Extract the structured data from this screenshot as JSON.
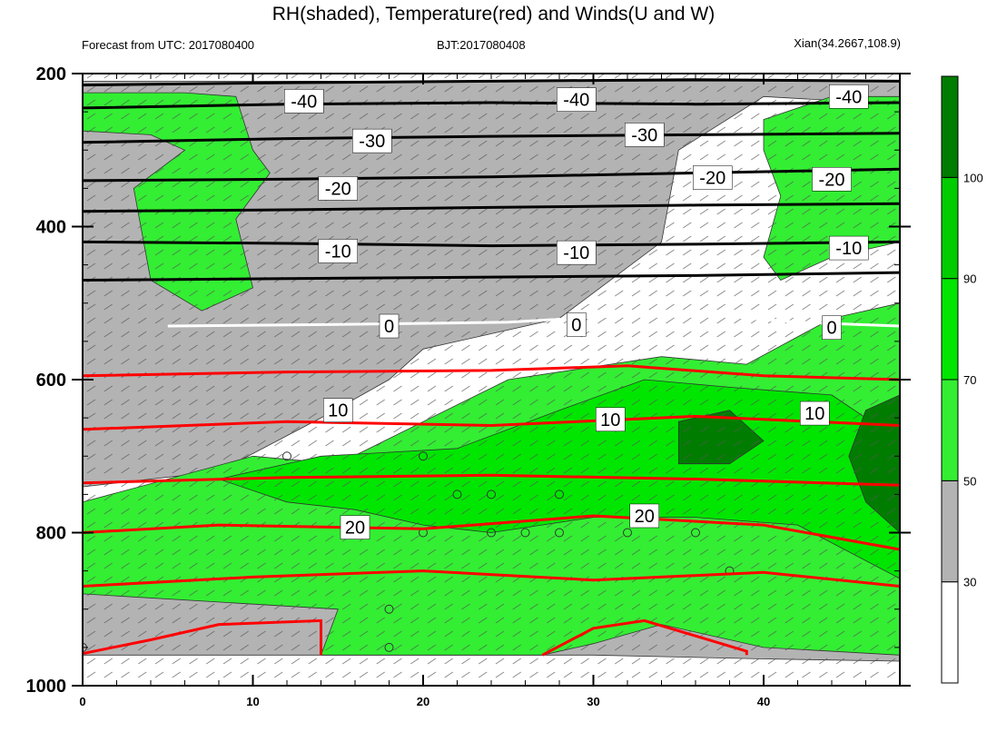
{
  "header": {
    "title": "RH(shaded), Temperature(red) and Winds(U and W)",
    "forecast": "Forecast from UTC: 2017080400",
    "bjt": "BJT:2017080408",
    "location": "Xian(34.2667,108.9)"
  },
  "colors": {
    "rh_30_50": "#b3b3b3",
    "rh_50_70": "#33ee33",
    "rh_70_90": "#00e600",
    "rh_90_100": "#00cc00",
    "rh_100": "#007d00",
    "temp_warm": "#ff0000",
    "temp_cold": "#000000",
    "temp_zero": "#ffffff"
  },
  "chart_data": {
    "type": "heatmap",
    "title": "RH(shaded), Temperature(red) and Winds(U and W)",
    "xlabel": "",
    "ylabel": "",
    "xlim": [
      0,
      48
    ],
    "ylim": [
      1000,
      200
    ],
    "x_ticks": [
      "0",
      "10",
      "20",
      "30",
      "40"
    ],
    "y_ticks": [
      "200",
      "400",
      "600",
      "800",
      "1000"
    ],
    "colorbar": {
      "labels": [
        "30",
        "50",
        "70",
        "90",
        "100"
      ],
      "colors": [
        "#ffffff",
        "#b3b3b3",
        "#33ee33",
        "#00e600",
        "#00cc00",
        "#007d00"
      ]
    },
    "rh_regions": [
      {
        "level": "30-50",
        "points": [
          [
            0,
            210
          ],
          [
            48,
            210
          ],
          [
            48,
            240
          ],
          [
            40,
            230
          ],
          [
            35,
            300
          ],
          [
            34,
            420
          ],
          [
            28,
            520
          ],
          [
            20,
            560
          ],
          [
            18,
            600
          ],
          [
            14,
            650
          ],
          [
            8,
            720
          ],
          [
            0,
            740
          ]
        ]
      },
      {
        "level": "30-50",
        "points": [
          [
            0,
            840
          ],
          [
            4,
            860
          ],
          [
            8,
            870
          ],
          [
            12,
            880
          ],
          [
            16,
            870
          ],
          [
            20,
            860
          ],
          [
            30,
            870
          ],
          [
            40,
            890
          ],
          [
            48,
            900
          ],
          [
            48,
            968
          ],
          [
            40,
            965
          ],
          [
            30,
            960
          ],
          [
            20,
            960
          ],
          [
            10,
            960
          ],
          [
            0,
            960
          ]
        ]
      },
      {
        "level": "50-70",
        "points": [
          [
            0,
            225
          ],
          [
            6,
            225
          ],
          [
            9,
            230
          ],
          [
            10,
            300
          ],
          [
            11,
            330
          ],
          [
            9,
            390
          ],
          [
            10,
            480
          ],
          [
            7,
            510
          ],
          [
            4,
            470
          ],
          [
            3,
            350
          ],
          [
            6,
            300
          ],
          [
            4,
            280
          ],
          [
            0,
            275
          ]
        ]
      },
      {
        "level": "50-70",
        "points": [
          [
            15,
            710
          ],
          [
            25,
            600
          ],
          [
            34,
            570
          ],
          [
            39,
            580
          ],
          [
            44,
            520
          ],
          [
            48,
            500
          ],
          [
            48,
            960
          ],
          [
            40,
            950
          ],
          [
            34,
            920
          ],
          [
            30,
            945
          ],
          [
            27,
            960
          ],
          [
            18,
            960
          ],
          [
            14,
            960
          ],
          [
            15,
            900
          ],
          [
            0,
            880
          ],
          [
            0,
            760
          ],
          [
            10,
            700
          ]
        ]
      },
      {
        "level": "50-70",
        "points": [
          [
            40,
            260
          ],
          [
            44,
            230
          ],
          [
            48,
            230
          ],
          [
            48,
            420
          ],
          [
            44,
            440
          ],
          [
            41,
            470
          ],
          [
            40,
            440
          ],
          [
            41,
            360
          ],
          [
            40,
            300
          ]
        ]
      },
      {
        "level": "70-90",
        "points": [
          [
            8,
            730
          ],
          [
            14,
            700
          ],
          [
            22,
            690
          ],
          [
            28,
            640
          ],
          [
            33,
            600
          ],
          [
            38,
            610
          ],
          [
            44,
            620
          ],
          [
            48,
            680
          ],
          [
            48,
            860
          ],
          [
            42,
            790
          ],
          [
            36,
            780
          ],
          [
            30,
            780
          ],
          [
            24,
            800
          ],
          [
            20,
            790
          ],
          [
            16,
            770
          ],
          [
            12,
            760
          ]
        ]
      },
      {
        "level": "100",
        "points": [
          [
            35,
            655
          ],
          [
            38,
            640
          ],
          [
            40,
            680
          ],
          [
            38,
            710
          ],
          [
            35,
            710
          ]
        ]
      },
      {
        "level": "100",
        "points": [
          [
            46,
            640
          ],
          [
            48,
            620
          ],
          [
            48,
            800
          ],
          [
            46,
            760
          ],
          [
            45,
            700
          ]
        ]
      }
    ],
    "temperature_lines": [
      {
        "label": "-40",
        "color": "#000000",
        "points": [
          [
            0,
            215
          ],
          [
            12,
            212
          ],
          [
            24,
            210
          ],
          [
            36,
            208
          ],
          [
            48,
            210
          ]
        ]
      },
      {
        "label": "-40",
        "color": "#000000",
        "points": [
          [
            0,
            245
          ],
          [
            12,
            240
          ],
          [
            24,
            238
          ],
          [
            36,
            240
          ],
          [
            48,
            238
          ]
        ]
      },
      {
        "label": "-30",
        "color": "#000000",
        "points": [
          [
            0,
            290
          ],
          [
            12,
            285
          ],
          [
            24,
            282
          ],
          [
            36,
            280
          ],
          [
            48,
            278
          ]
        ]
      },
      {
        "label": "-20",
        "color": "#000000",
        "points": [
          [
            0,
            340
          ],
          [
            12,
            338
          ],
          [
            24,
            335
          ],
          [
            36,
            330
          ],
          [
            48,
            325
          ]
        ]
      },
      {
        "label": "-20",
        "color": "#000000",
        "points": [
          [
            0,
            380
          ],
          [
            12,
            378
          ],
          [
            24,
            375
          ],
          [
            36,
            372
          ],
          [
            48,
            370
          ]
        ]
      },
      {
        "label": "-10",
        "color": "#000000",
        "points": [
          [
            0,
            420
          ],
          [
            12,
            422
          ],
          [
            24,
            425
          ],
          [
            36,
            423
          ],
          [
            48,
            420
          ]
        ]
      },
      {
        "label": "-10",
        "color": "#000000",
        "points": [
          [
            0,
            470
          ],
          [
            12,
            468
          ],
          [
            24,
            466
          ],
          [
            36,
            464
          ],
          [
            48,
            460
          ]
        ]
      },
      {
        "label": "0",
        "color": "#ffffff",
        "points": [
          [
            5,
            530
          ],
          [
            15,
            528
          ],
          [
            25,
            525
          ],
          [
            35,
            512
          ],
          [
            42,
            525
          ],
          [
            48,
            530
          ]
        ]
      },
      {
        "label": "10",
        "color": "#ff0000",
        "points": [
          [
            0,
            595
          ],
          [
            12,
            590
          ],
          [
            24,
            588
          ],
          [
            32,
            582
          ],
          [
            40,
            595
          ],
          [
            48,
            600
          ]
        ]
      },
      {
        "label": "10",
        "color": "#ff0000",
        "points": [
          [
            0,
            665
          ],
          [
            12,
            655
          ],
          [
            24,
            660
          ],
          [
            36,
            648
          ],
          [
            48,
            660
          ]
        ]
      },
      {
        "label": "20",
        "color": "#ff0000",
        "points": [
          [
            0,
            735
          ],
          [
            12,
            728
          ],
          [
            24,
            725
          ],
          [
            36,
            730
          ],
          [
            48,
            738
          ]
        ]
      },
      {
        "label": "20",
        "color": "#ff0000",
        "points": [
          [
            0,
            800
          ],
          [
            8,
            790
          ],
          [
            20,
            795
          ],
          [
            30,
            778
          ],
          [
            40,
            790
          ],
          [
            48,
            822
          ]
        ]
      },
      {
        "label": "",
        "color": "#ff0000",
        "points": [
          [
            0,
            870
          ],
          [
            10,
            858
          ],
          [
            20,
            850
          ],
          [
            30,
            862
          ],
          [
            40,
            852
          ],
          [
            48,
            870
          ]
        ]
      },
      {
        "label": "",
        "color": "#ff0000",
        "points": [
          [
            0,
            958
          ],
          [
            4,
            940
          ],
          [
            8,
            920
          ],
          [
            14,
            915
          ],
          [
            14,
            960
          ]
        ]
      },
      {
        "label": "",
        "color": "#ff0000",
        "points": [
          [
            27,
            960
          ],
          [
            30,
            925
          ],
          [
            33,
            915
          ],
          [
            36,
            935
          ],
          [
            39,
            955
          ],
          [
            39,
            960
          ]
        ]
      }
    ],
    "contour_labels": [
      {
        "text": "-40",
        "x": 13,
        "y": 236
      },
      {
        "text": "-40",
        "x": 29,
        "y": 234
      },
      {
        "text": "-40",
        "x": 45,
        "y": 230
      },
      {
        "text": "-30",
        "x": 17,
        "y": 288
      },
      {
        "text": "-30",
        "x": 33,
        "y": 280
      },
      {
        "text": "-20",
        "x": 15,
        "y": 350
      },
      {
        "text": "-20",
        "x": 37,
        "y": 336
      },
      {
        "text": "-20",
        "x": 44,
        "y": 338
      },
      {
        "text": "-10",
        "x": 15,
        "y": 432
      },
      {
        "text": "-10",
        "x": 29,
        "y": 434
      },
      {
        "text": "-10",
        "x": 45,
        "y": 428
      },
      {
        "text": "0",
        "x": 18,
        "y": 530
      },
      {
        "text": "0",
        "x": 29,
        "y": 528
      },
      {
        "text": "0",
        "x": 44,
        "y": 532
      },
      {
        "text": "10",
        "x": 15,
        "y": 640
      },
      {
        "text": "10",
        "x": 31,
        "y": 652
      },
      {
        "text": "10",
        "x": 43,
        "y": 644
      },
      {
        "text": "20",
        "x": 16,
        "y": 793
      },
      {
        "text": "20",
        "x": 33,
        "y": 778
      }
    ],
    "circles": [
      [
        0,
        950
      ],
      [
        12,
        700
      ],
      [
        20,
        700
      ],
      [
        22,
        750
      ],
      [
        24,
        750
      ],
      [
        28,
        750
      ],
      [
        16,
        800
      ],
      [
        20,
        800
      ],
      [
        24,
        800
      ],
      [
        26,
        800
      ],
      [
        28,
        800
      ],
      [
        32,
        800
      ],
      [
        36,
        800
      ],
      [
        38,
        850
      ],
      [
        18,
        900
      ],
      [
        18,
        950
      ]
    ]
  }
}
